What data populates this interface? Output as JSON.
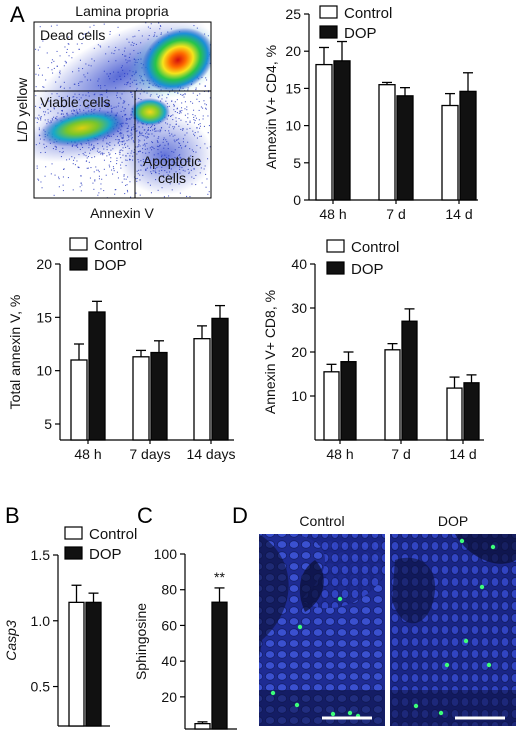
{
  "panel_labels": {
    "a": "A",
    "b": "B",
    "c": "C",
    "d": "D"
  },
  "legend": {
    "control": "Control",
    "dop": "DOP"
  },
  "colors": {
    "control": "#ffffff",
    "dop": "#111111",
    "stroke": "#000000"
  },
  "flow": {
    "title": "Lamina propria",
    "dead_label": "Dead cells",
    "viable_label": "Viable cells",
    "apoptotic_label_1": "Apoptotic",
    "apoptotic_label_2": "cells",
    "xlabel": "Annexin V",
    "ylabel": "L/D yellow"
  },
  "microscopy": {
    "left_label": "Control",
    "right_label": "DOP"
  },
  "chart_data": [
    {
      "id": "cd4",
      "type": "bar",
      "ylabel": "Annexin V+ CD4, %",
      "xlabel": "",
      "categories": [
        "48 h",
        "7 d",
        "14 d"
      ],
      "ylim": [
        0,
        25
      ],
      "yticks": [
        0,
        5,
        10,
        15,
        20,
        25
      ],
      "series": [
        {
          "name": "Control",
          "values": [
            18.2,
            15.5,
            12.7
          ],
          "errors": [
            2.3,
            0.3,
            1.6
          ]
        },
        {
          "name": "DOP",
          "values": [
            18.7,
            14.0,
            14.6
          ],
          "errors": [
            2.6,
            1.1,
            2.5
          ]
        }
      ]
    },
    {
      "id": "total",
      "type": "bar",
      "ylabel": "Total annexin V, %",
      "xlabel": "",
      "categories": [
        "48 h",
        "7 days",
        "14 days"
      ],
      "ylim": [
        3.5,
        20
      ],
      "yticks": [
        5,
        10,
        15,
        20
      ],
      "series": [
        {
          "name": "Control",
          "values": [
            11.0,
            11.3,
            13.0
          ],
          "errors": [
            1.5,
            0.6,
            1.2
          ]
        },
        {
          "name": "DOP",
          "values": [
            15.5,
            11.7,
            14.9
          ],
          "errors": [
            1.0,
            1.1,
            1.2
          ]
        }
      ]
    },
    {
      "id": "cd8",
      "type": "bar",
      "ylabel": "Annexin V+ CD8, %",
      "xlabel": "",
      "categories": [
        "48 h",
        "7 d",
        "14 d"
      ],
      "ylim": [
        0,
        40
      ],
      "yticks": [
        10,
        20,
        30,
        40
      ],
      "series": [
        {
          "name": "Control",
          "values": [
            15.5,
            20.5,
            11.8
          ],
          "errors": [
            1.7,
            1.4,
            2.5
          ]
        },
        {
          "name": "DOP",
          "values": [
            17.8,
            27.0,
            13.0
          ],
          "errors": [
            2.2,
            2.8,
            1.8
          ]
        }
      ]
    },
    {
      "id": "casp3",
      "type": "bar",
      "ylabel": "Casp3",
      "xlabel": "",
      "categories": [
        ""
      ],
      "ylim": [
        0.2,
        1.5
      ],
      "yticks": [
        0.5,
        1.0,
        1.5
      ],
      "series": [
        {
          "name": "Control",
          "values": [
            1.14
          ],
          "errors": [
            0.13
          ]
        },
        {
          "name": "DOP",
          "values": [
            1.14
          ],
          "errors": [
            0.07
          ]
        }
      ]
    },
    {
      "id": "sphingosine",
      "type": "bar",
      "ylabel": "Sphingosine",
      "xlabel": "",
      "categories": [
        ""
      ],
      "ylim": [
        2,
        100
      ],
      "yticks": [
        20,
        40,
        60,
        80,
        100
      ],
      "annotation": "**",
      "series": [
        {
          "name": "Control",
          "values": [
            5
          ],
          "errors": [
            1
          ]
        },
        {
          "name": "DOP",
          "values": [
            73
          ],
          "errors": [
            8
          ]
        }
      ]
    }
  ]
}
